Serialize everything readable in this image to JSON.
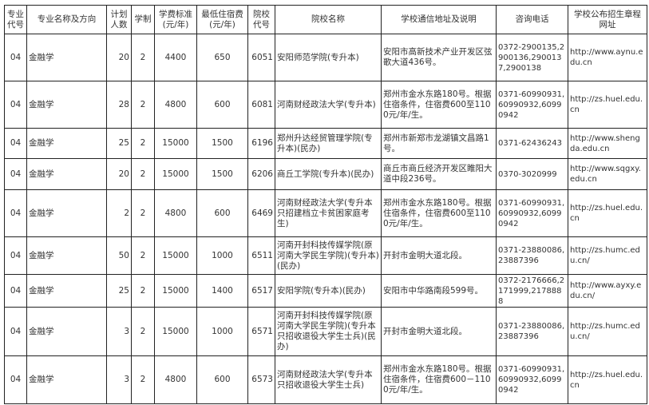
{
  "headers": [
    "专业代号",
    "专业名称及方向",
    "计划人数",
    "学制",
    "学费标准(元/年)",
    "最低住宿费(元/年)",
    "院校代号",
    "院校名称",
    "学校通信地址及说明",
    "咨询电话",
    "学校公布招生章程网址"
  ],
  "rows": [
    [
      "04",
      "金融学",
      "20",
      "2",
      "4400",
      "650",
      "6051",
      "安阳师范学院(专升本)",
      "安阳市高新技术产业开发区弦歌大道436号。",
      "0372-2900135,2900136,2900137,2900138",
      "http://www.aynu.edu.cn"
    ],
    [
      "04",
      "金融学",
      "28",
      "2",
      "4800",
      "600",
      "6081",
      "河南财经政法大学(专升本)",
      "郑州市金水东路180号。根据住宿条件，住宿费600至1100元/年/生。",
      "0371-60990931,60990932,60990942",
      "http://zs.huel.edu.cn"
    ],
    [
      "04",
      "金融学",
      "25",
      "2",
      "15000",
      "1500",
      "6196",
      "郑州升达经贸管理学院(专升本)(民办)",
      "郑州市新郑市龙湖镇文昌路1号。",
      "0371-62436243",
      "http://www.shengda.edu.cn"
    ],
    [
      "04",
      "金融学",
      "20",
      "2",
      "15000",
      "1500",
      "6206",
      "商丘工学院(专升本)(民办)",
      "商丘市商丘经济开发区睢阳大道中段236号。",
      "0370-3020999",
      "http://www.sqgxy.edu.cn"
    ],
    [
      "04",
      "金融学",
      "2",
      "2",
      "4800",
      "600",
      "6469",
      "河南财经政法大学(专升本只招建档立卡贫困家庭考生)",
      "郑州市金水东路180号。根据住宿条件，住宿费600至1100元/年/生。",
      "0371-60990931,60990932,60990942",
      "http://zs.huel.edu.cn"
    ],
    [
      "04",
      "金融学",
      "50",
      "2",
      "15000",
      "1000",
      "6511",
      "河南开封科技传媒学院(原河南大学民生学院)(专升本)(民办)",
      "开封市金明大道北段。",
      "0371-23880086,23887396",
      "http://zs.humc.edu.cn/"
    ],
    [
      "04",
      "金融学",
      "25",
      "2",
      "15000",
      "1400",
      "6517",
      "安阳学院(专升本)(民办)",
      "安阳市中华路南段599号。",
      "0372-2176666,2171999,2178888",
      "http://www.ayxy.edu.cn/"
    ],
    [
      "04",
      "金融学",
      "3",
      "2",
      "15000",
      "1000",
      "6571",
      "河南开封科技传媒学院(原河南大学民生学院)(专升本只招收退役大学生士兵)(民办)",
      "开封市金明大道北段。",
      "0371-23880086,23887396",
      "http://zs.humc.edu.cn/"
    ],
    [
      "04",
      "金融学",
      "3",
      "2",
      "4800",
      "600",
      "6573",
      "河南财经政法大学(专升本只招收退役大学生士兵)",
      "郑州市金水东路180号。根据住宿条件，住宿费600－1100元/年/生。",
      "0371-60990931,60990932,60990942",
      "http://zs.huel.edu.cn"
    ]
  ]
}
